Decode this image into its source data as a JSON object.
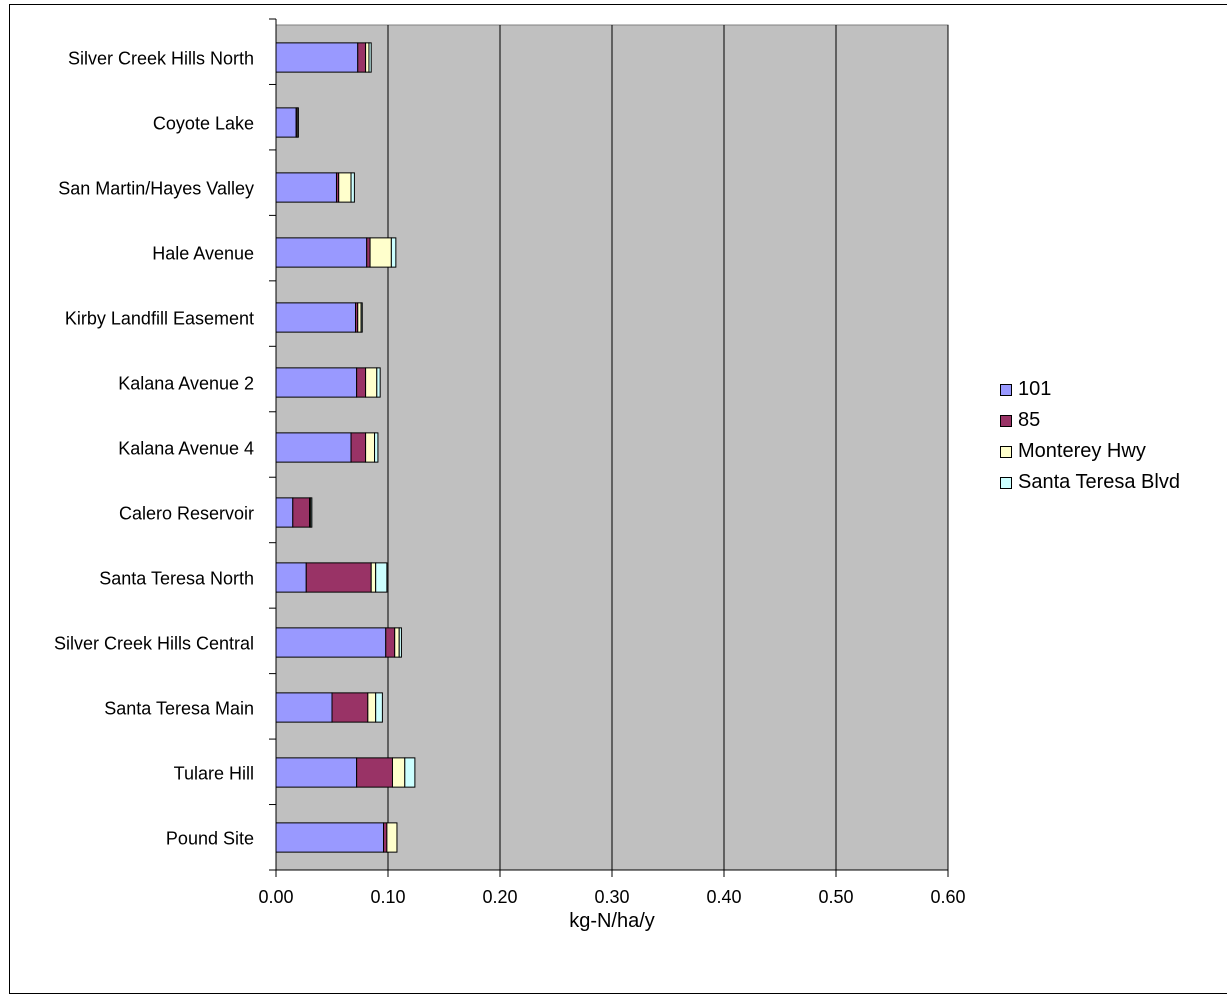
{
  "chart_data": {
    "type": "bar",
    "orientation": "horizontal",
    "stacked": true,
    "categories": [
      "Silver Creek Hills North",
      "Coyote Lake",
      "San Martin/Hayes Valley",
      "Hale Avenue",
      "Kirby Landfill Easement",
      "Kalana Avenue 2",
      "Kalana Avenue 4",
      "Calero Reservoir",
      "Santa Teresa North",
      "Silver Creek Hills Central",
      "Santa Teresa Main",
      "Tulare Hill",
      "Pound Site"
    ],
    "series": [
      {
        "name": "101",
        "color": "#9999ff",
        "values": [
          0.073,
          0.018,
          0.054,
          0.081,
          0.071,
          0.072,
          0.067,
          0.015,
          0.027,
          0.098,
          0.05,
          0.072,
          0.096
        ]
      },
      {
        "name": "85",
        "color": "#993366",
        "values": [
          0.007,
          0.001,
          0.002,
          0.003,
          0.002,
          0.008,
          0.013,
          0.015,
          0.058,
          0.008,
          0.032,
          0.032,
          0.003
        ]
      },
      {
        "name": "Monterey Hwy",
        "color": "#ffffcc",
        "values": [
          0.003,
          0.001,
          0.011,
          0.019,
          0.003,
          0.01,
          0.008,
          0.001,
          0.004,
          0.004,
          0.007,
          0.011,
          0.009
        ]
      },
      {
        "name": "Santa Teresa Blvd",
        "color": "#ccffff",
        "values": [
          0.002,
          0.0,
          0.003,
          0.004,
          0.001,
          0.003,
          0.003,
          0.001,
          0.01,
          0.002,
          0.006,
          0.009,
          0.0
        ]
      }
    ],
    "xlabel": "kg-N/ha/y",
    "ylabel": "",
    "xlim": [
      0,
      0.6
    ],
    "xticks": [
      "0.00",
      "0.10",
      "0.20",
      "0.30",
      "0.40",
      "0.50",
      "0.60"
    ],
    "xtick_values": [
      0,
      0.1,
      0.2,
      0.3,
      0.4,
      0.5,
      0.6
    ],
    "plot_background": "#c0c0c0",
    "grid": "vertical",
    "legend_position": "right"
  }
}
